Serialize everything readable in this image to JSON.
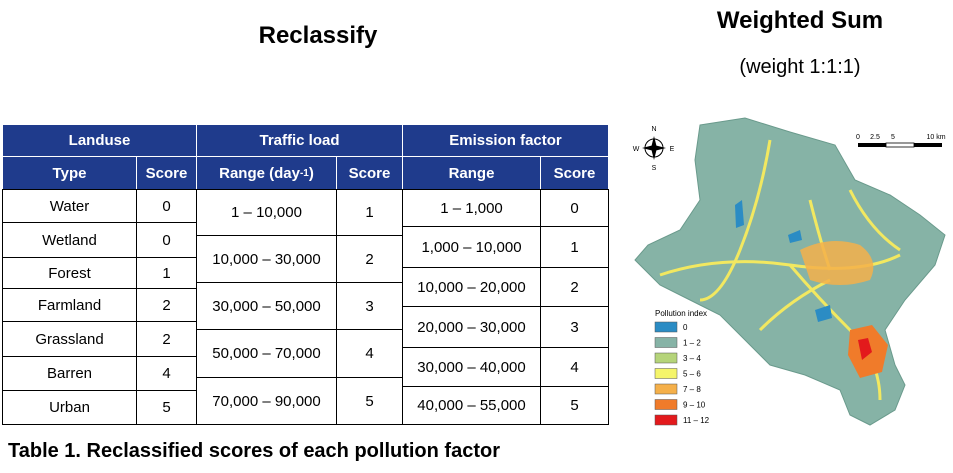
{
  "left_title": "Reclassify",
  "right_title": "Weighted Sum",
  "right_subtitle": "(weight 1:1:1)",
  "table": {
    "groups": [
      "Landuse",
      "Traffic load",
      "Emission factor"
    ],
    "columns": [
      "Type",
      "Score",
      {
        "text": "Range (day",
        "sup": "-1",
        "close": ")"
      },
      "Score",
      "Range",
      "Score"
    ],
    "landuse": [
      [
        "Water",
        "0"
      ],
      [
        "Wetland",
        "0"
      ],
      [
        "Forest",
        "1"
      ],
      [
        "Farmland",
        "2"
      ],
      [
        "Grassland",
        "2"
      ],
      [
        "Barren",
        "4"
      ],
      [
        "Urban",
        "5"
      ]
    ],
    "traffic": [
      [
        "1 – 10,000",
        "1"
      ],
      [
        "10,000 – 30,000",
        "2"
      ],
      [
        "30,000 – 50,000",
        "3"
      ],
      [
        "50,000 – 70,000",
        "4"
      ],
      [
        "70,000 – 90,000",
        "5"
      ]
    ],
    "emission": [
      [
        "1 – 1,000",
        "0"
      ],
      [
        "1,000 – 10,000",
        "1"
      ],
      [
        "10,000 – 20,000",
        "2"
      ],
      [
        "20,000 – 30,000",
        "3"
      ],
      [
        "30,000 – 40,000",
        "4"
      ],
      [
        "40,000 – 55,000",
        "5"
      ]
    ]
  },
  "caption": "Table 1. Reclassified scores of each pollution factor",
  "map": {
    "compass": [
      "N",
      "S",
      "W",
      "E"
    ],
    "scale": [
      "0",
      "2.5",
      "5",
      "10 km"
    ],
    "legend": {
      "title": "Pollution index",
      "items": [
        {
          "label": "0",
          "color": "#2b8cc4"
        },
        {
          "label": "1 – 2",
          "color": "#86b3a6"
        },
        {
          "label": "3 – 4",
          "color": "#b5d47a"
        },
        {
          "label": "5 – 6",
          "color": "#f5f56a"
        },
        {
          "label": "7 – 8",
          "color": "#f5b04a"
        },
        {
          "label": "9 – 10",
          "color": "#f07b2a"
        },
        {
          "label": "11 – 12",
          "color": "#e31a1c"
        }
      ]
    }
  }
}
